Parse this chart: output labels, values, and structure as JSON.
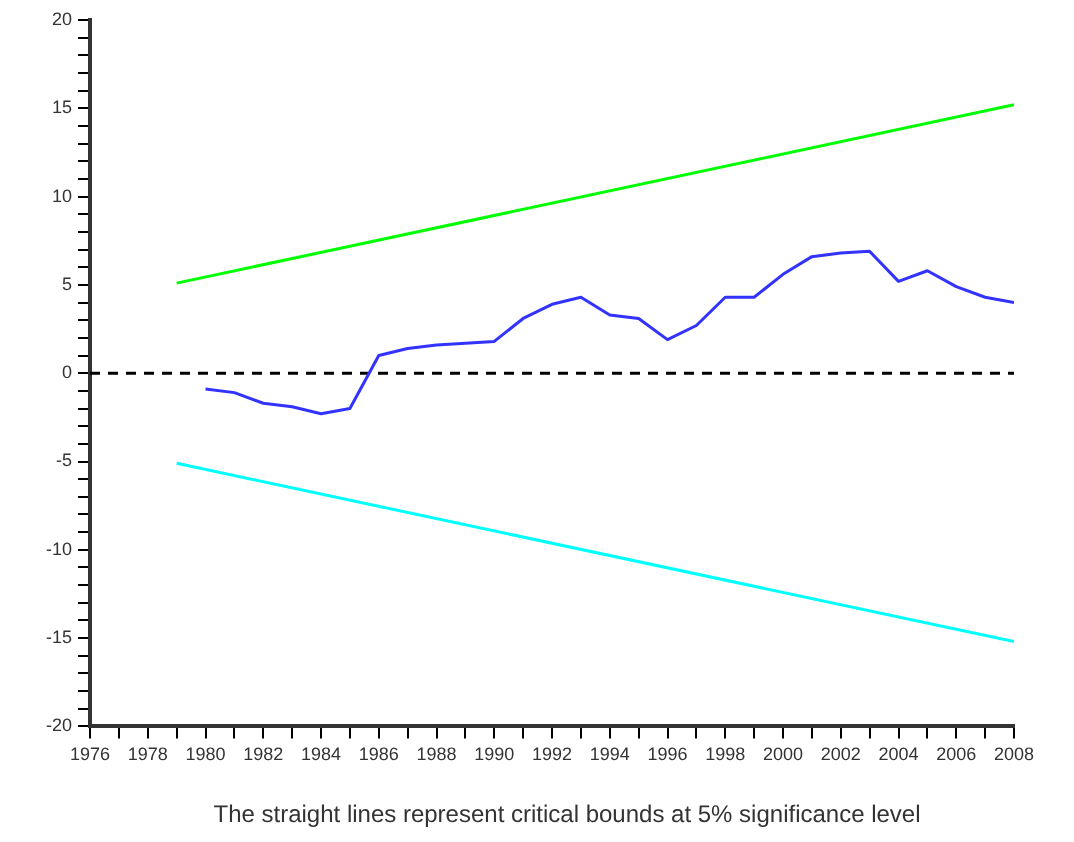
{
  "chart_data": {
    "type": "line",
    "annotations": [
      "The straight lines represent critical bounds at 5% significance level"
    ],
    "xlim": [
      1976,
      2008
    ],
    "xticks": [
      1976,
      {
        "value": 1977,
        "label": null
      },
      1978,
      {
        "value": 1979,
        "label": null
      },
      1980,
      {
        "value": 1981,
        "label": null
      },
      1982,
      {
        "value": 1983,
        "label": null
      },
      1984,
      {
        "value": 1985,
        "label": null
      },
      1986,
      {
        "value": 1987,
        "label": null
      },
      1988,
      {
        "value": 1989,
        "label": null
      },
      1990,
      {
        "value": 1991,
        "label": null
      },
      1992,
      {
        "value": 1993,
        "label": null
      },
      1994,
      {
        "value": 1995,
        "label": null
      },
      1996,
      {
        "value": 1997,
        "label": null
      },
      1998,
      {
        "value": 1999,
        "label": null
      },
      2000,
      {
        "value": 2001,
        "label": null
      },
      2002,
      {
        "value": 2003,
        "label": null
      },
      2004,
      {
        "value": 2005,
        "label": null
      },
      2006,
      {
        "value": 2007,
        "label": null
      },
      2008
    ],
    "ylim": [
      -20,
      20
    ],
    "yticks": [
      -20,
      {
        "value": -19,
        "label": null
      },
      {
        "value": -18,
        "label": null
      },
      {
        "value": -17,
        "label": null
      },
      {
        "value": -16,
        "label": null
      },
      -15,
      {
        "value": -14,
        "label": null
      },
      {
        "value": -13,
        "label": null
      },
      {
        "value": -12,
        "label": null
      },
      {
        "value": -11,
        "label": null
      },
      -10,
      {
        "value": -9,
        "label": null
      },
      {
        "value": -8,
        "label": null
      },
      {
        "value": -7,
        "label": null
      },
      {
        "value": -6,
        "label": null
      },
      -5,
      {
        "value": -4,
        "label": null
      },
      {
        "value": -3,
        "label": null
      },
      {
        "value": -2,
        "label": null
      },
      {
        "value": -1,
        "label": null
      },
      0,
      {
        "value": 1,
        "label": null
      },
      {
        "value": 2,
        "label": null
      },
      {
        "value": 3,
        "label": null
      },
      {
        "value": 4,
        "label": null
      },
      5,
      {
        "value": 6,
        "label": null
      },
      {
        "value": 7,
        "label": null
      },
      {
        "value": 8,
        "label": null
      },
      {
        "value": 9,
        "label": null
      },
      10,
      {
        "value": 11,
        "label": null
      },
      {
        "value": 12,
        "label": null
      },
      {
        "value": 13,
        "label": null
      },
      {
        "value": 14,
        "label": null
      },
      15,
      {
        "value": 16,
        "label": null
      },
      {
        "value": 17,
        "label": null
      },
      {
        "value": 18,
        "label": null
      },
      {
        "value": 19,
        "label": null
      },
      20
    ],
    "grid": false,
    "legend": false,
    "marker": "none",
    "line_style": "solid",
    "ref_lines": [
      {
        "axis": "y",
        "value": 0,
        "color": "#000000",
        "line_style": "dashed"
      }
    ],
    "series": [
      {
        "color": "#3333ff",
        "x": [
          1980,
          1981,
          1982,
          1983,
          1984,
          1985,
          1986,
          1987,
          1988,
          1989,
          1990,
          1991,
          1992,
          1993,
          1994,
          1995,
          1996,
          1997,
          1998,
          1999,
          2000,
          2001,
          2002,
          2003,
          2004,
          2005,
          2006,
          2007,
          2008
        ],
        "values": [
          -0.9,
          -1.1,
          -1.7,
          -1.9,
          -2.3,
          -2.0,
          1.0,
          1.4,
          1.6,
          1.7,
          1.8,
          3.1,
          3.9,
          4.3,
          3.3,
          3.1,
          1.9,
          2.7,
          4.3,
          4.3,
          5.6,
          6.6,
          6.8,
          6.9,
          5.2,
          5.8,
          4.9,
          4.3,
          4.0
        ]
      },
      {
        "color": "#00ff00",
        "x": [
          1979,
          2008
        ],
        "values": [
          5.1,
          15.2
        ]
      },
      {
        "color": "#00ffff",
        "x": [
          1979,
          2008
        ],
        "values": [
          -5.1,
          -15.2
        ]
      }
    ]
  }
}
